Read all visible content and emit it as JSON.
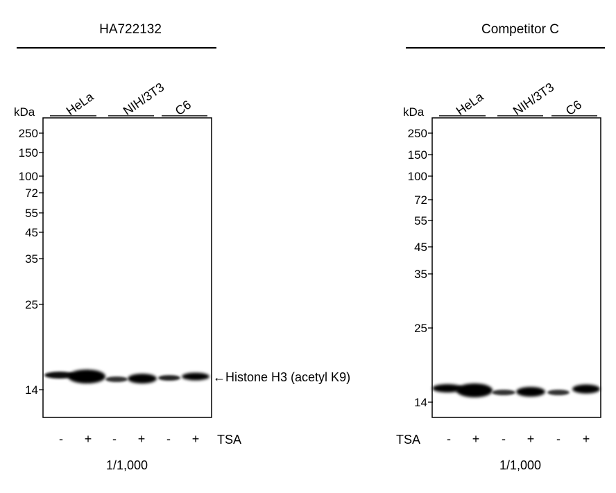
{
  "left_panel": {
    "title": "HA722132",
    "unit": "kDa",
    "lanes": [
      {
        "name": "HeLa"
      },
      {
        "name": "NIH/3T3"
      },
      {
        "name": "C6"
      }
    ],
    "markers": [
      "250",
      "150",
      "100",
      "72",
      "55",
      "45",
      "35",
      "25",
      "14"
    ],
    "treatments": [
      "-",
      "+",
      "-",
      "+",
      "-",
      "+"
    ],
    "treatment_label": "TSA",
    "band_label": "←Histone H3 (acetyl K9)",
    "dilution": "1/1,000"
  },
  "right_panel": {
    "title": "Competitor C",
    "unit": "kDa",
    "lanes": [
      {
        "name": "HeLa"
      },
      {
        "name": "NIH/3T3"
      },
      {
        "name": "C6"
      }
    ],
    "markers": [
      "250",
      "150",
      "100",
      "72",
      "55",
      "45",
      "35",
      "25",
      "14"
    ],
    "treatments": [
      "-",
      "+",
      "-",
      "+",
      "-",
      "+"
    ],
    "treatment_label": "TSA",
    "dilution": "1/1,000"
  }
}
